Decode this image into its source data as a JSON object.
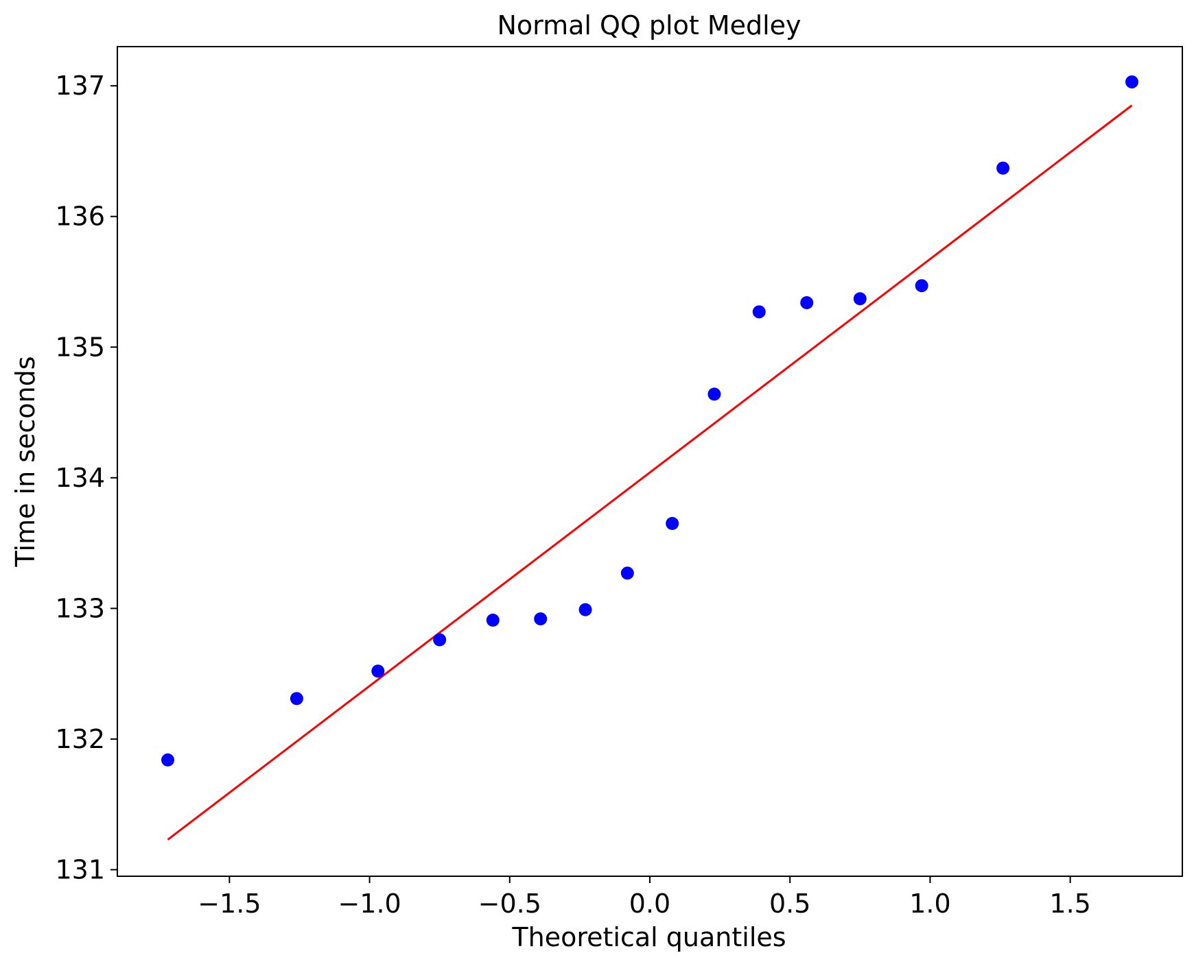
{
  "chart_data": {
    "type": "scatter",
    "title": "Normal QQ plot Medley",
    "xlabel": "Theoretical quantiles",
    "ylabel": "Time in seconds",
    "xlim": [
      -1.9,
      1.9
    ],
    "ylim": [
      130.95,
      137.3
    ],
    "xticks": [
      -1.5,
      -1.0,
      -0.5,
      0.0,
      0.5,
      1.0,
      1.5
    ],
    "xtick_labels": [
      "−1.5",
      "−1.0",
      "−0.5",
      "0.0",
      "0.5",
      "1.0",
      "1.5"
    ],
    "yticks": [
      131,
      132,
      133,
      134,
      135,
      136,
      137
    ],
    "ytick_labels": [
      "131",
      "132",
      "133",
      "134",
      "135",
      "136",
      "137"
    ],
    "grid": false,
    "series": [
      {
        "kind": "points",
        "color": "#0000ff",
        "x": [
          -1.72,
          -1.26,
          -0.97,
          -0.75,
          -0.56,
          -0.39,
          -0.23,
          -0.08,
          0.08,
          0.23,
          0.39,
          0.56,
          0.75,
          0.97,
          1.26,
          1.72
        ],
        "y": [
          131.84,
          132.31,
          132.52,
          132.76,
          132.91,
          132.92,
          132.99,
          133.27,
          133.65,
          134.64,
          135.27,
          135.34,
          135.37,
          135.47,
          136.37,
          137.03
        ]
      },
      {
        "kind": "line",
        "color": "#ff0000",
        "x": [
          -1.72,
          1.72
        ],
        "y": [
          131.23,
          136.85
        ]
      }
    ]
  }
}
